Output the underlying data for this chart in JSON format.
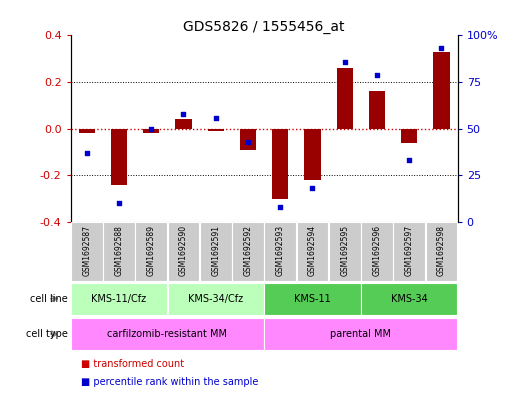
{
  "title": "GDS5826 / 1555456_at",
  "samples": [
    "GSM1692587",
    "GSM1692588",
    "GSM1692589",
    "GSM1692590",
    "GSM1692591",
    "GSM1692592",
    "GSM1692593",
    "GSM1692594",
    "GSM1692595",
    "GSM1692596",
    "GSM1692597",
    "GSM1692598"
  ],
  "transformed_count": [
    -0.02,
    -0.24,
    -0.02,
    0.04,
    -0.01,
    -0.09,
    -0.3,
    -0.22,
    0.26,
    0.16,
    -0.06,
    0.33
  ],
  "percentile_rank": [
    37,
    10,
    50,
    58,
    56,
    43,
    8,
    18,
    86,
    79,
    33,
    93
  ],
  "ylim_left": [
    -0.4,
    0.4
  ],
  "ylim_right": [
    0,
    100
  ],
  "bar_color": "#990000",
  "dot_color": "#0000cc",
  "yticks_left": [
    -0.4,
    -0.2,
    0.0,
    0.2,
    0.4
  ],
  "yticks_right": [
    0,
    25,
    50,
    75,
    100
  ],
  "ytick_labels_right": [
    "0",
    "25",
    "50",
    "75",
    "100%"
  ],
  "cell_line_groups": [
    {
      "label": "KMS-11/Cfz",
      "start": 0,
      "end": 2,
      "color": "#bbffbb"
    },
    {
      "label": "KMS-34/Cfz",
      "start": 3,
      "end": 5,
      "color": "#bbffbb"
    },
    {
      "label": "KMS-11",
      "start": 6,
      "end": 8,
      "color": "#55cc55"
    },
    {
      "label": "KMS-34",
      "start": 9,
      "end": 11,
      "color": "#55cc55"
    }
  ],
  "cell_type_groups": [
    {
      "label": "carfilzomib-resistant MM",
      "start": 0,
      "end": 5,
      "color": "#ff88ff"
    },
    {
      "label": "parental MM",
      "start": 6,
      "end": 11,
      "color": "#ff88ff"
    }
  ],
  "legend_items": [
    {
      "color": "#cc0000",
      "label": "transformed count"
    },
    {
      "color": "#0000cc",
      "label": "percentile rank within the sample"
    }
  ],
  "hline_color": "#cc0000",
  "dotted_color": "#000000",
  "tick_color_left": "#cc0000",
  "tick_color_right": "#0000cc",
  "sample_box_color": "#cccccc",
  "left_label_color": "#555555",
  "arrow_color": "#888888"
}
